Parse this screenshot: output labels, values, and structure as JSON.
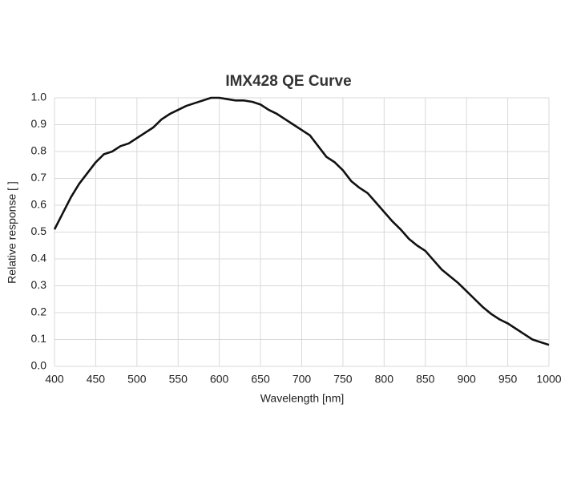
{
  "chart_data": {
    "type": "line",
    "title": "IMX428 QE Curve",
    "x_label": "Wavelength [nm]",
    "y_label": "Relative response [ ]",
    "x": [
      400,
      410,
      420,
      430,
      440,
      450,
      460,
      470,
      480,
      490,
      500,
      510,
      520,
      530,
      540,
      550,
      560,
      570,
      580,
      590,
      600,
      610,
      620,
      630,
      640,
      650,
      660,
      670,
      680,
      690,
      700,
      710,
      720,
      730,
      740,
      750,
      760,
      770,
      780,
      790,
      800,
      810,
      820,
      830,
      840,
      850,
      860,
      870,
      880,
      890,
      900,
      910,
      920,
      930,
      940,
      950,
      960,
      970,
      980,
      990,
      1000
    ],
    "series": [
      {
        "name": "QE",
        "color": "#111111",
        "values": [
          0.51,
          0.57,
          0.63,
          0.68,
          0.72,
          0.76,
          0.79,
          0.8,
          0.82,
          0.83,
          0.85,
          0.87,
          0.89,
          0.92,
          0.94,
          0.955,
          0.97,
          0.98,
          0.99,
          1.0,
          1.0,
          0.995,
          0.99,
          0.99,
          0.985,
          0.975,
          0.955,
          0.94,
          0.92,
          0.9,
          0.88,
          0.86,
          0.82,
          0.78,
          0.76,
          0.73,
          0.69,
          0.665,
          0.645,
          0.61,
          0.575,
          0.54,
          0.51,
          0.475,
          0.45,
          0.43,
          0.395,
          0.36,
          0.335,
          0.31,
          0.28,
          0.25,
          0.22,
          0.195,
          0.175,
          0.16,
          0.14,
          0.12,
          0.1,
          0.09,
          0.08
        ]
      }
    ],
    "xlim": [
      400,
      1000
    ],
    "xticks": [
      400,
      450,
      500,
      550,
      600,
      650,
      700,
      750,
      800,
      850,
      900,
      950,
      1000
    ],
    "ylim": [
      0,
      1
    ],
    "yticks": [
      {
        "value": 0,
        "label": "0.0"
      },
      0.1,
      0.2,
      0.3,
      0.4,
      0.5,
      0.6,
      0.7,
      0.8,
      0.9,
      {
        "value": 1,
        "label": "1.0"
      }
    ],
    "grid": true
  }
}
